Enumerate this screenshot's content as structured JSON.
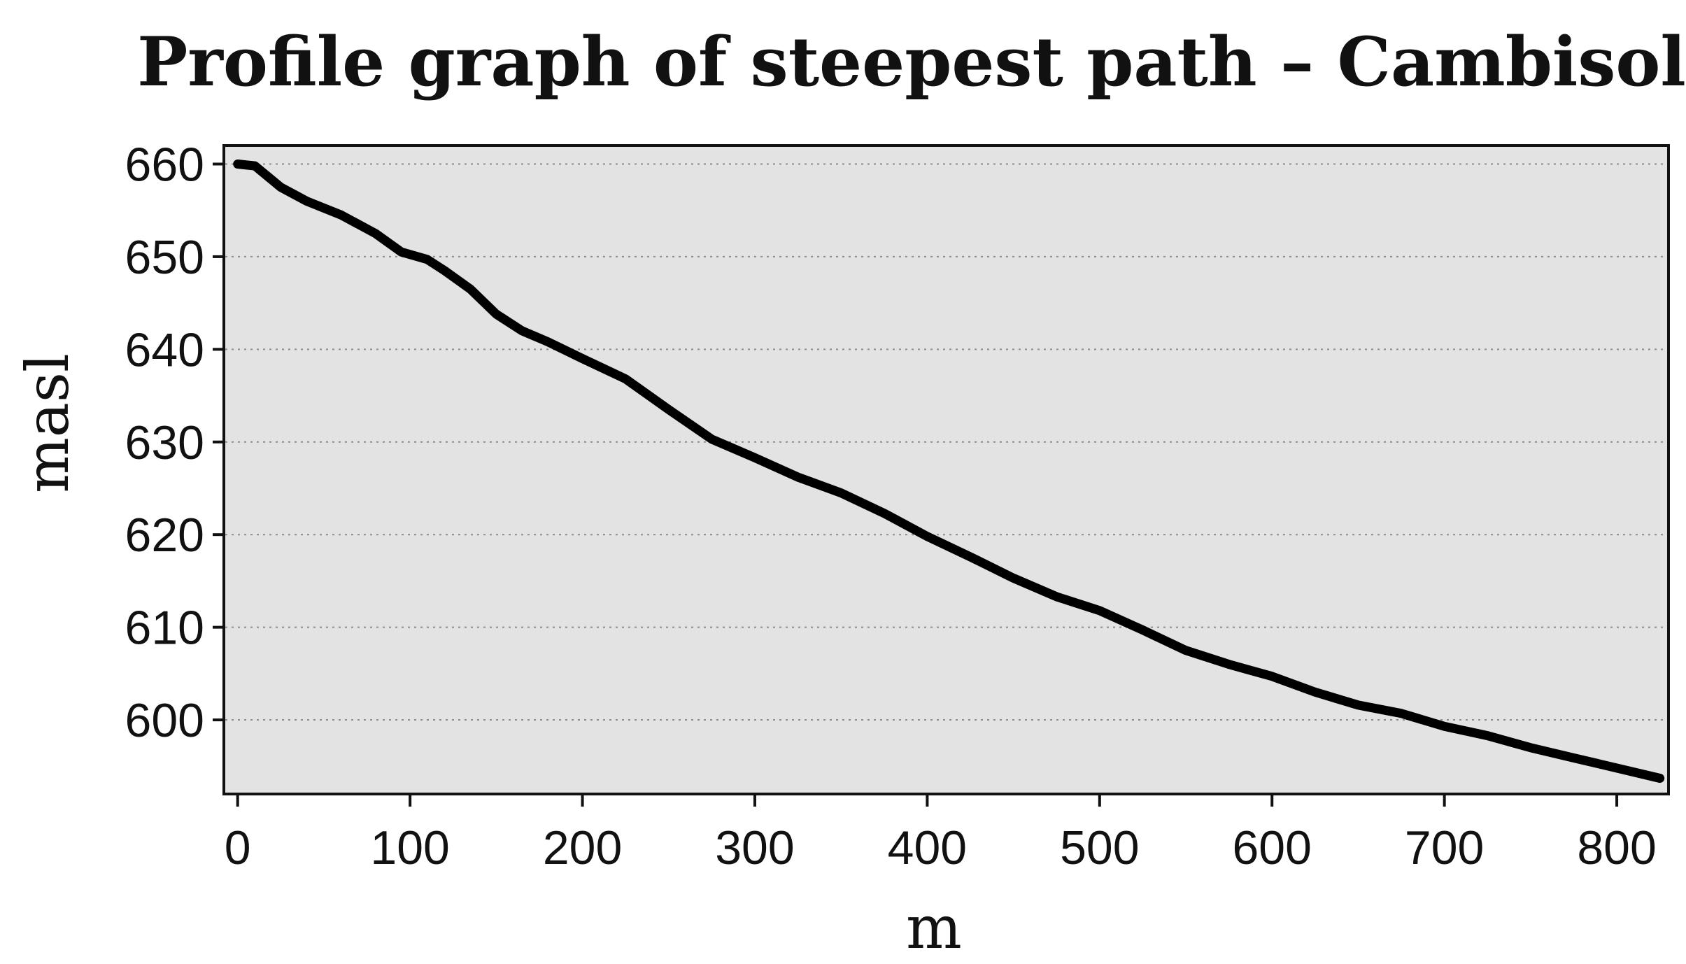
{
  "chart_data": {
    "type": "line",
    "title": "Profile graph of steepest path – Cambisols",
    "xlabel": "m",
    "ylabel": "masl",
    "xlim": [
      -8,
      830
    ],
    "ylim": [
      592,
      662
    ],
    "xticks": [
      0,
      100,
      200,
      300,
      400,
      500,
      600,
      700,
      800
    ],
    "yticks": [
      600,
      610,
      620,
      630,
      640,
      650,
      660
    ],
    "grid": true,
    "grid_axis": "y",
    "colors": {
      "plot_background": "#e3e3e3",
      "line": "#000000",
      "frame": "#111111"
    },
    "series": [
      {
        "x": [
          0,
          10,
          25,
          40,
          60,
          80,
          95,
          110,
          120,
          135,
          150,
          165,
          180,
          200,
          225,
          250,
          275,
          300,
          325,
          350,
          375,
          400,
          425,
          450,
          475,
          500,
          525,
          550,
          575,
          600,
          625,
          650,
          675,
          700,
          725,
          750,
          775,
          800,
          825
        ],
        "y": [
          660,
          659.8,
          657.5,
          656,
          654.5,
          652.5,
          650.5,
          649.7,
          648.5,
          646.5,
          643.8,
          642,
          640.8,
          639,
          636.8,
          633.5,
          630.3,
          628.3,
          626.2,
          624.5,
          622.3,
          619.8,
          617.6,
          615.3,
          613.3,
          611.8,
          609.7,
          607.5,
          606,
          604.7,
          603,
          601.6,
          600.7,
          599.3,
          598.3,
          597,
          595.9,
          594.8,
          593.7
        ]
      }
    ]
  }
}
